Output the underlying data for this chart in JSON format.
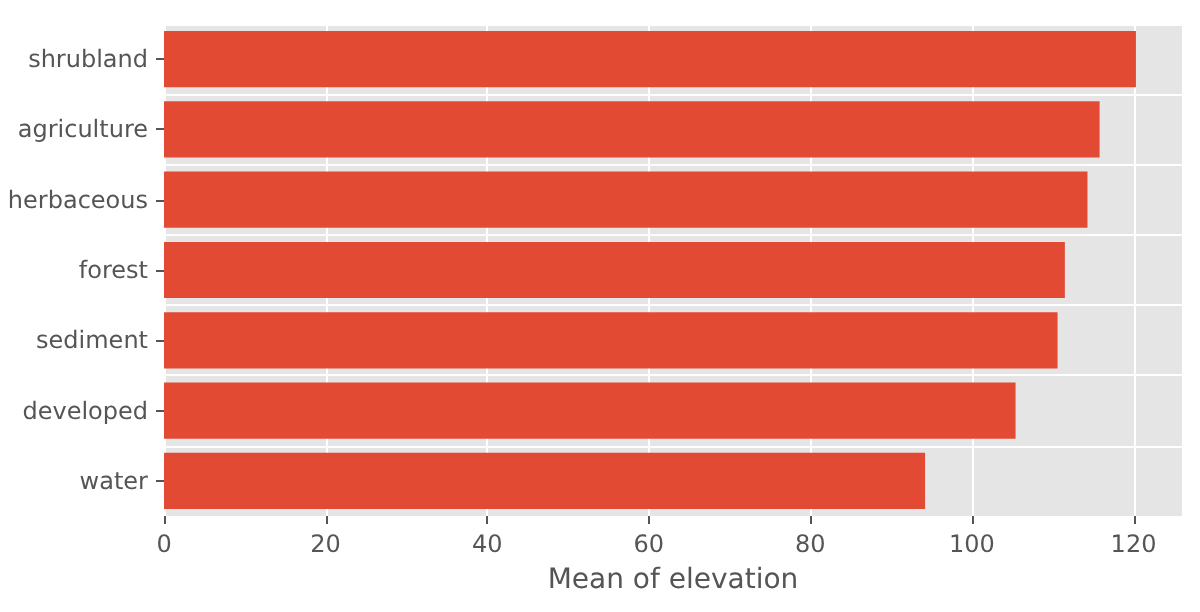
{
  "chart_data": {
    "type": "bar",
    "orientation": "horizontal",
    "xlabel": "Mean of elevation",
    "categories": [
      "shrubland",
      "agriculture",
      "herbaceous",
      "forest",
      "sediment",
      "developed",
      "water"
    ],
    "values": [
      120.3,
      115.8,
      114.3,
      111.5,
      110.6,
      105.4,
      94.2
    ],
    "color": "#e24a33",
    "xlim": [
      0,
      126
    ],
    "xticks": [
      0,
      20,
      40,
      60,
      80,
      100,
      120
    ],
    "grid": true
  }
}
